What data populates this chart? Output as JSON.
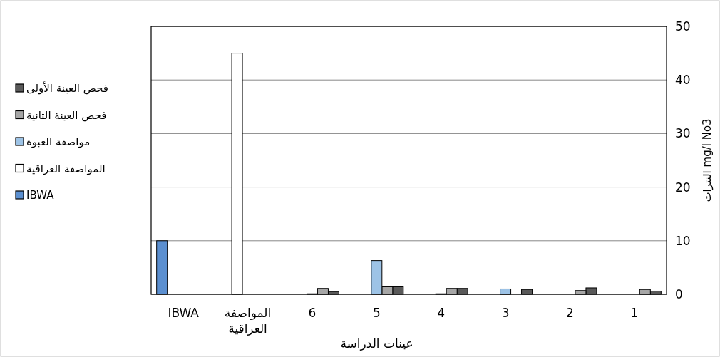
{
  "chart_data": {
    "type": "bar",
    "xlabel": "عينات الدراسة",
    "ylabel": "النترات mg/l No3",
    "categories": [
      "IBWA",
      "المواصفة العراقية",
      "6",
      "5",
      "4",
      "3",
      "2",
      "1"
    ],
    "series": [
      {
        "name": "فحص العينة الأولى",
        "color": "#595959",
        "values": [
          null,
          null,
          0.5,
          1.4,
          1.1,
          0.9,
          1.2,
          0.6
        ]
      },
      {
        "name": "فحص العينة الثانية",
        "color": "#a6a6a6",
        "values": [
          null,
          null,
          1.1,
          1.4,
          1.1,
          null,
          0.7,
          0.9
        ]
      },
      {
        "name": "مواصفة العبوة",
        "color": "#9dc3e6",
        "values": [
          null,
          null,
          0.1,
          6.3,
          0.1,
          1.0,
          null,
          null
        ]
      },
      {
        "name": "المواصفة العراقية",
        "color": "#ffffff",
        "values": [
          null,
          45,
          null,
          null,
          null,
          null,
          null,
          null
        ]
      },
      {
        "name": "IBWA",
        "color": "#5b8fd0",
        "values": [
          10,
          null,
          null,
          null,
          null,
          null,
          null,
          null
        ]
      }
    ],
    "ylim": [
      0,
      50
    ],
    "yticks": [
      0,
      10,
      20,
      30,
      40,
      50
    ],
    "grid": "y",
    "legend": "left"
  }
}
